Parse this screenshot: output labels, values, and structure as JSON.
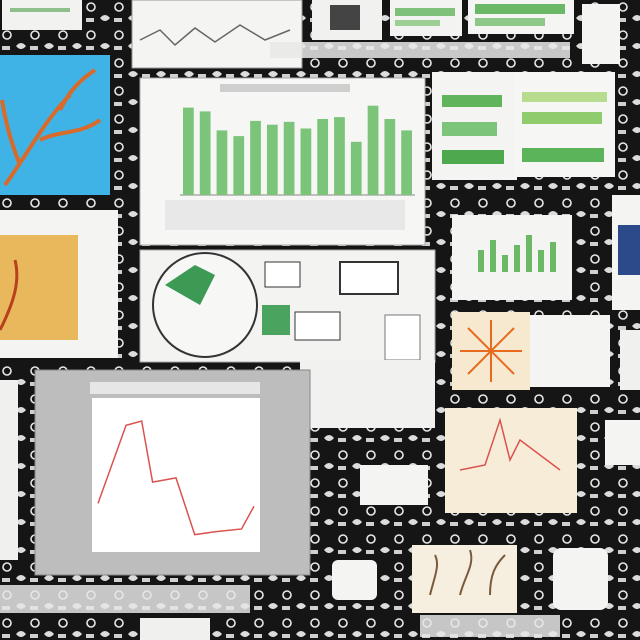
{
  "chart_data": [
    {
      "type": "bar",
      "values": [
        92,
        88,
        68,
        62,
        78,
        74,
        77,
        70,
        80,
        82,
        56,
        94,
        80,
        68
      ],
      "ylim": [
        0,
        100
      ],
      "color": "#7cc47a"
    },
    {
      "type": "line",
      "x": [
        0,
        18,
        28,
        35,
        50,
        62,
        75,
        92,
        100
      ],
      "values": [
        30,
        85,
        88,
        45,
        48,
        8,
        10,
        12,
        28
      ],
      "xlim": [
        0,
        100
      ],
      "ylim": [
        0,
        100
      ],
      "color": "#d9534f"
    }
  ]
}
